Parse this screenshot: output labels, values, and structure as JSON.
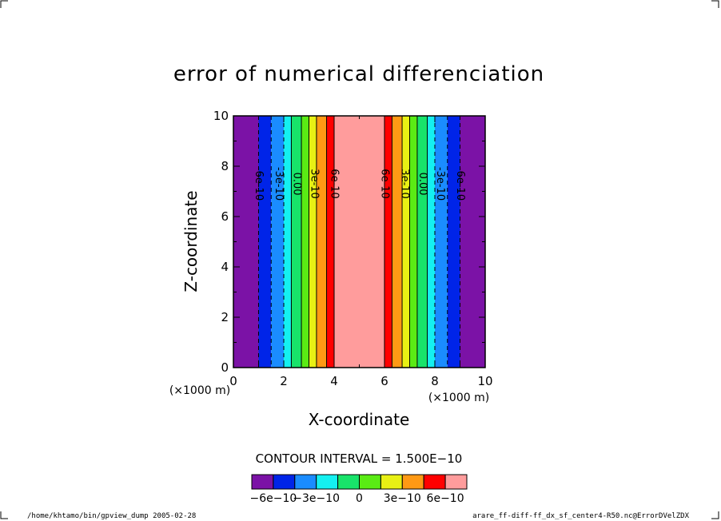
{
  "chart_data": {
    "type": "contour",
    "title": "error of numerical differenciation",
    "xlabel": "X-coordinate",
    "ylabel": "Z-coordinate",
    "x_unit": "(×1000 m)",
    "z_unit": "(×1000 m)",
    "xlim": [
      0,
      10
    ],
    "ylim": [
      0,
      10
    ],
    "x_ticks": [
      "0",
      "2",
      "4",
      "6",
      "8",
      "10"
    ],
    "y_ticks": [
      "0",
      "2",
      "4",
      "6",
      "8",
      "10"
    ],
    "bands": [
      {
        "x0": 0,
        "x1": 1,
        "color": "#7b12a6"
      },
      {
        "x0": 1,
        "x1": 1.5,
        "color": "#0024e8"
      },
      {
        "x0": 1.5,
        "x1": 2,
        "color": "#1a8cff"
      },
      {
        "x0": 2,
        "x1": 2.3,
        "color": "#14f0f0"
      },
      {
        "x0": 2.3,
        "x1": 2.7,
        "color": "#18e36a"
      },
      {
        "x0": 2.7,
        "x1": 3,
        "color": "#5aeb14"
      },
      {
        "x0": 3,
        "x1": 3.3,
        "color": "#e8f014"
      },
      {
        "x0": 3.3,
        "x1": 3.7,
        "color": "#ff9914"
      },
      {
        "x0": 3.7,
        "x1": 4,
        "color": "#ff0000"
      },
      {
        "x0": 4,
        "x1": 6,
        "color": "#ff9c9c"
      },
      {
        "x0": 6,
        "x1": 6.3,
        "color": "#ff0000"
      },
      {
        "x0": 6.3,
        "x1": 6.7,
        "color": "#ff9914"
      },
      {
        "x0": 6.7,
        "x1": 7,
        "color": "#e8f014"
      },
      {
        "x0": 7,
        "x1": 7.3,
        "color": "#5aeb14"
      },
      {
        "x0": 7.3,
        "x1": 7.7,
        "color": "#18e36a"
      },
      {
        "x0": 7.7,
        "x1": 8,
        "color": "#14f0f0"
      },
      {
        "x0": 8,
        "x1": 8.5,
        "color": "#1a8cff"
      },
      {
        "x0": 8.5,
        "x1": 9,
        "color": "#0024e8"
      },
      {
        "x0": 9,
        "x1": 10,
        "color": "#7b12a6"
      }
    ],
    "contour_lines": [
      {
        "x": 1.0,
        "dashed": true
      },
      {
        "x": 1.5,
        "dashed": true
      },
      {
        "x": 2.0,
        "dashed": true
      },
      {
        "x": 2.3,
        "dashed": false
      },
      {
        "x": 2.7,
        "dashed": false
      },
      {
        "x": 3.0,
        "dashed": false
      },
      {
        "x": 3.3,
        "dashed": false
      },
      {
        "x": 3.7,
        "dashed": false
      },
      {
        "x": 4.0,
        "dashed": false
      },
      {
        "x": 6.0,
        "dashed": false
      },
      {
        "x": 6.3,
        "dashed": false
      },
      {
        "x": 6.7,
        "dashed": false
      },
      {
        "x": 7.0,
        "dashed": false
      },
      {
        "x": 7.3,
        "dashed": false
      },
      {
        "x": 7.7,
        "dashed": false
      },
      {
        "x": 8.0,
        "dashed": true
      },
      {
        "x": 8.5,
        "dashed": true
      },
      {
        "x": 9.0,
        "dashed": true
      }
    ],
    "contour_labels": [
      {
        "x": 1.0,
        "text": "-6e-10"
      },
      {
        "x": 1.8,
        "text": "-3e-10"
      },
      {
        "x": 2.5,
        "text": "0.00"
      },
      {
        "x": 3.2,
        "text": "3e-10"
      },
      {
        "x": 4.0,
        "text": "6e-10"
      },
      {
        "x": 6.0,
        "text": "6e-10"
      },
      {
        "x": 6.8,
        "text": "3e-10"
      },
      {
        "x": 7.5,
        "text": "0.00"
      },
      {
        "x": 8.2,
        "text": "-3e-10"
      },
      {
        "x": 9.0,
        "text": "-6e-10"
      }
    ],
    "contour_interval": "CONTOUR INTERVAL = 1.500E−10",
    "colorbar": {
      "colors": [
        "#7b12a6",
        "#0024e8",
        "#1a8cff",
        "#14f0f0",
        "#18e36a",
        "#5aeb14",
        "#e8f014",
        "#ff9914",
        "#ff0000",
        "#ff9c9c"
      ],
      "labels": [
        "−6e−10",
        "−3e−10",
        "0",
        "3e−10",
        "6e−10"
      ]
    }
  },
  "footer": {
    "left": "/home/khtamo/bin/gpview_dump  2005-02-28",
    "right": "arare_ff-diff-ff_dx_sf_center4-R50.nc@ErrorDVelZDX"
  }
}
